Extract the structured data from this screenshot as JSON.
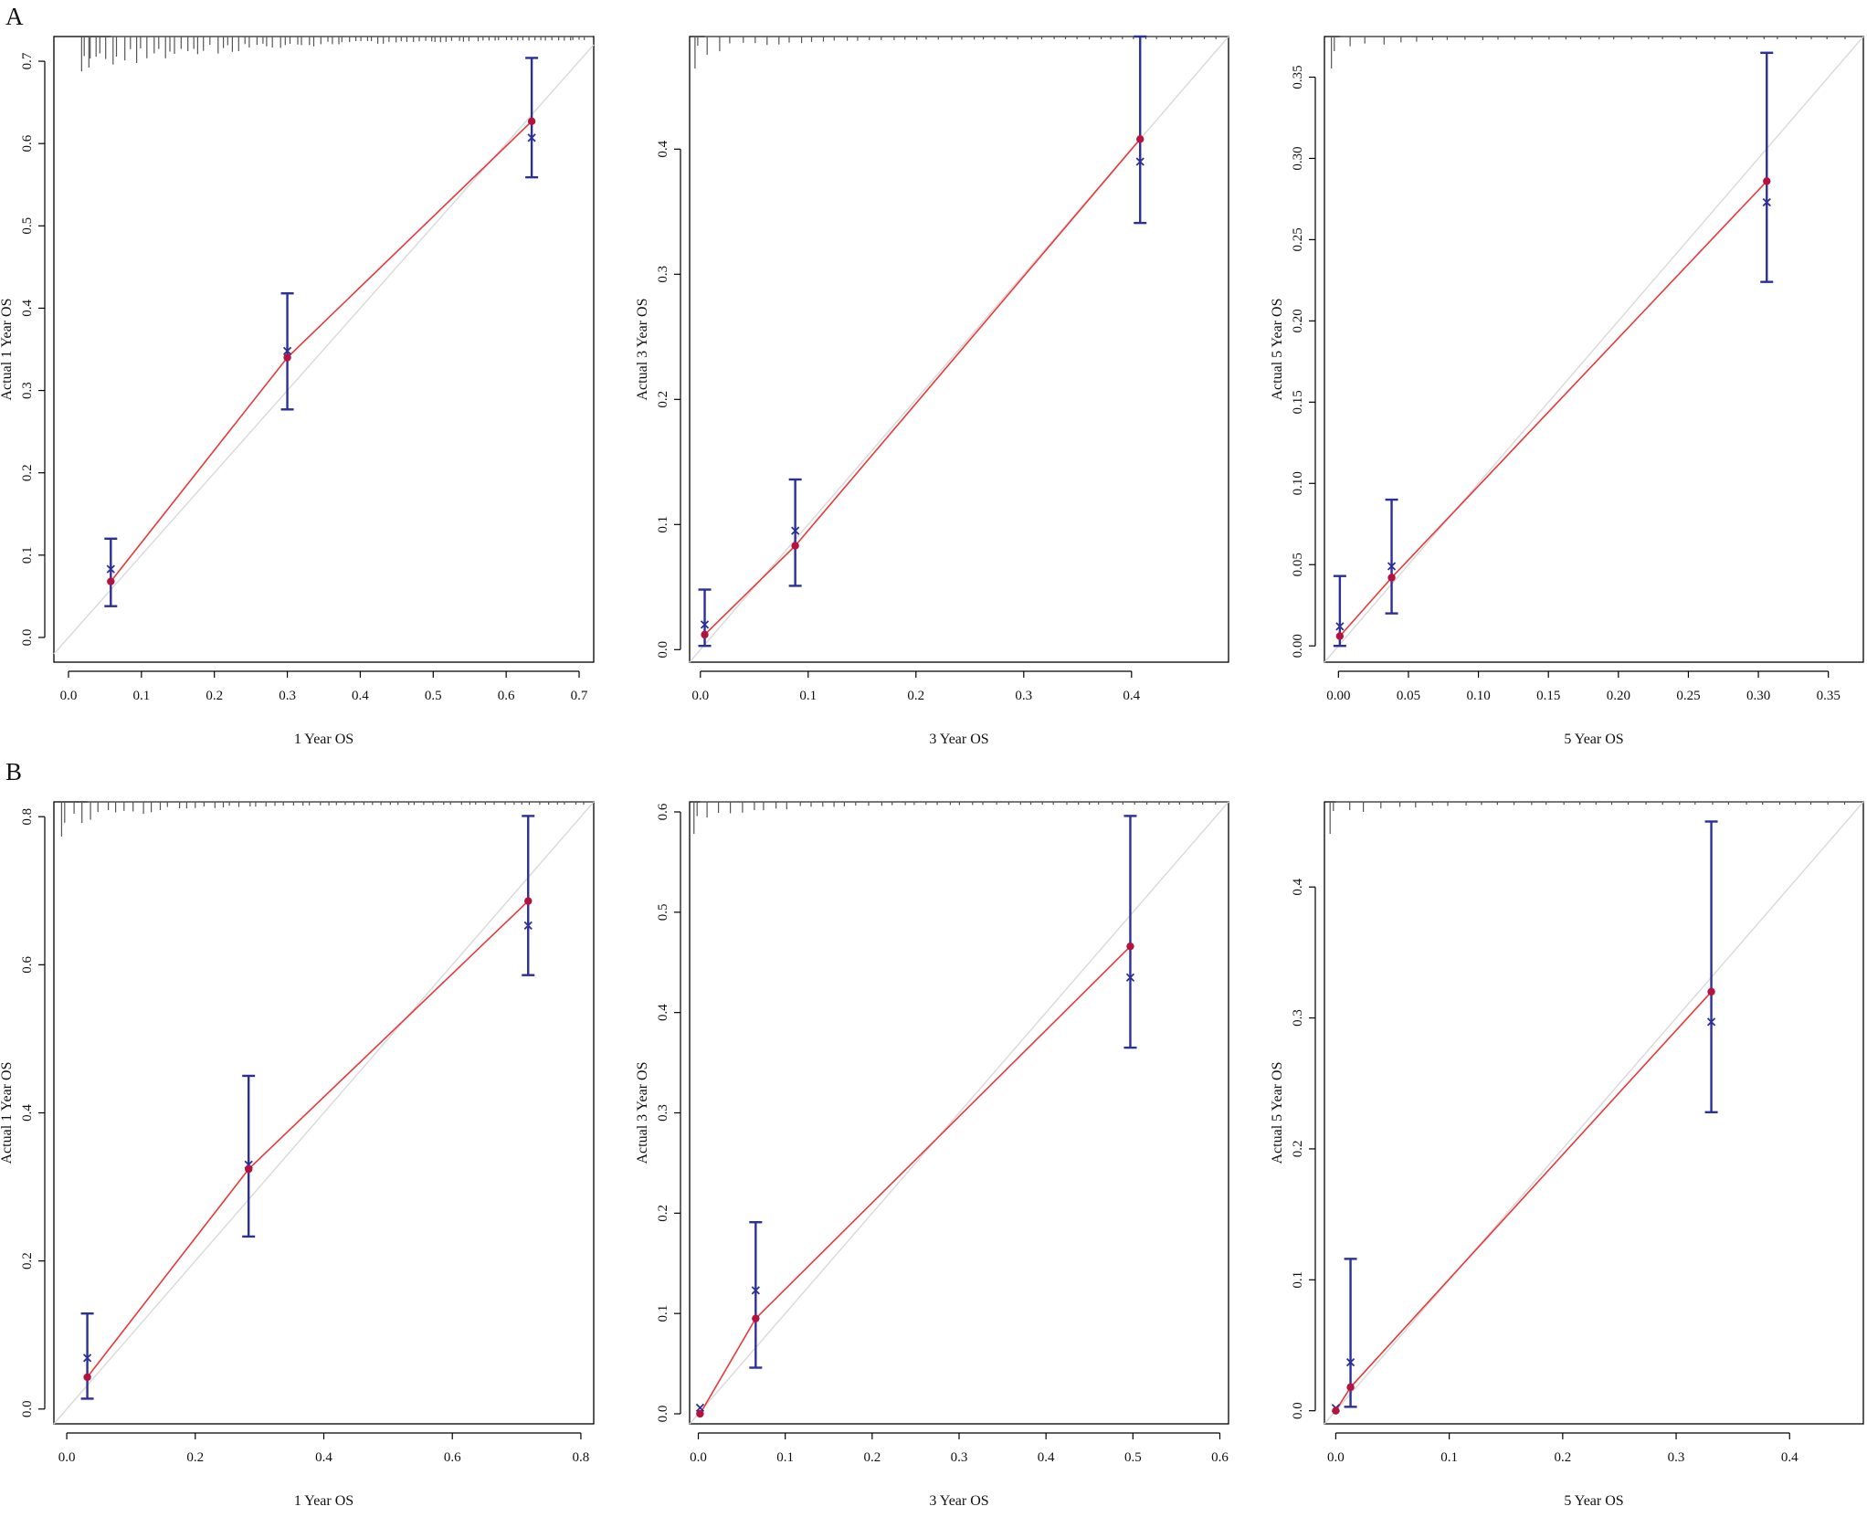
{
  "panel_letters": {
    "A": "A",
    "B": "B"
  },
  "style": {
    "frame_color": "#000000",
    "ideal_line_color": "#d9d9d9",
    "fit_line_color": "#e8393a",
    "errorbar_color": "#2b2f9a",
    "point_color": "#b5123f",
    "rug_color": "#555555"
  },
  "chart_data": [
    {
      "type": "scatter",
      "panel": "A",
      "xlabel": "1 Year OS",
      "ylabel": "Actual 1 Year OS",
      "xlim": [
        -0.02,
        0.72
      ],
      "ylim": [
        -0.03,
        0.73
      ],
      "xticks": [
        0.0,
        0.1,
        0.2,
        0.3,
        0.4,
        0.5,
        0.6,
        0.7
      ],
      "xtick_labels": [
        "0.0",
        "0.1",
        "0.2",
        "0.3",
        "0.4",
        "0.5",
        "0.6",
        "0.7"
      ],
      "yticks": [
        0.0,
        0.1,
        0.2,
        0.3,
        0.4,
        0.5,
        0.6,
        0.7
      ],
      "ytick_labels": [
        "0.0",
        "0.1",
        "0.2",
        "0.3",
        "0.4",
        "0.5",
        "0.6",
        "0.7"
      ],
      "points": [
        {
          "x": 0.058,
          "y": 0.068,
          "kmx": 0.083,
          "lower": 0.038,
          "upper": 0.12
        },
        {
          "x": 0.3,
          "y": 0.34,
          "kmx": 0.348,
          "lower": 0.277,
          "upper": 0.418
        },
        {
          "x": 0.635,
          "y": 0.627,
          "kmx": 0.607,
          "lower": 0.559,
          "upper": 0.704
        }
      ],
      "rug_density": 5
    },
    {
      "type": "scatter",
      "panel": "A",
      "xlabel": "3 Year OS",
      "ylabel": "Actual 3 Year OS",
      "xlim": [
        -0.01,
        0.49
      ],
      "ylim": [
        -0.01,
        0.49
      ],
      "xticks": [
        0.0,
        0.1,
        0.2,
        0.3,
        0.4
      ],
      "xtick_labels": [
        "0.0",
        "0.1",
        "0.2",
        "0.3",
        "0.4"
      ],
      "yticks": [
        0.0,
        0.1,
        0.2,
        0.3,
        0.4
      ],
      "ytick_labels": [
        "0.0",
        "0.1",
        "0.2",
        "0.3",
        "0.4"
      ],
      "points": [
        {
          "x": 0.004,
          "y": 0.012,
          "kmx": 0.02,
          "lower": 0.003,
          "upper": 0.048
        },
        {
          "x": 0.088,
          "y": 0.083,
          "kmx": 0.095,
          "lower": 0.051,
          "upper": 0.136
        },
        {
          "x": 0.408,
          "y": 0.408,
          "kmx": 0.39,
          "lower": 0.341,
          "upper": 0.49
        }
      ],
      "rug_density": 2
    },
    {
      "type": "scatter",
      "panel": "A",
      "xlabel": "5 Year OS",
      "ylabel": "Actual 5 Year OS",
      "xlim": [
        -0.01,
        0.375
      ],
      "ylim": [
        -0.01,
        0.375
      ],
      "xticks": [
        0.0,
        0.05,
        0.1,
        0.15,
        0.2,
        0.25,
        0.3,
        0.35
      ],
      "xtick_labels": [
        "0.00",
        "0.05",
        "0.10",
        "0.15",
        "0.20",
        "0.25",
        "0.30",
        "0.35"
      ],
      "yticks": [
        0.0,
        0.05,
        0.1,
        0.15,
        0.2,
        0.25,
        0.3,
        0.35
      ],
      "ytick_labels": [
        "0.00",
        "0.05",
        "0.10",
        "0.15",
        "0.20",
        "0.25",
        "0.30",
        "0.35"
      ],
      "points": [
        {
          "x": 0.001,
          "y": 0.006,
          "kmx": 0.012,
          "lower": 0.0,
          "upper": 0.043
        },
        {
          "x": 0.038,
          "y": 0.042,
          "kmx": 0.049,
          "lower": 0.02,
          "upper": 0.09
        },
        {
          "x": 0.306,
          "y": 0.286,
          "kmx": 0.273,
          "lower": 0.224,
          "upper": 0.365
        }
      ],
      "rug_density": 1
    },
    {
      "type": "scatter",
      "panel": "B",
      "xlabel": "1 Year OS",
      "ylabel": "Actual 1 Year OS",
      "xlim": [
        -0.02,
        0.82
      ],
      "ylim": [
        -0.02,
        0.82
      ],
      "xticks": [
        0.0,
        0.2,
        0.4,
        0.6,
        0.8
      ],
      "xtick_labels": [
        "0.0",
        "0.2",
        "0.4",
        "0.6",
        "0.8"
      ],
      "yticks": [
        0.0,
        0.2,
        0.4,
        0.6,
        0.8
      ],
      "ytick_labels": [
        "0.0",
        "0.2",
        "0.4",
        "0.6",
        "0.8"
      ],
      "points": [
        {
          "x": 0.032,
          "y": 0.043,
          "kmx": 0.069,
          "lower": 0.014,
          "upper": 0.129
        },
        {
          "x": 0.283,
          "y": 0.324,
          "kmx": 0.33,
          "lower": 0.233,
          "upper": 0.45
        },
        {
          "x": 0.718,
          "y": 0.686,
          "kmx": 0.653,
          "lower": 0.586,
          "upper": 0.801
        }
      ],
      "rug_density": 3
    },
    {
      "type": "scatter",
      "panel": "B",
      "xlabel": "3 Year OS",
      "ylabel": "Actual 3 Year OS",
      "xlim": [
        -0.01,
        0.61
      ],
      "ylim": [
        -0.01,
        0.61
      ],
      "xticks": [
        0.0,
        0.1,
        0.2,
        0.3,
        0.4,
        0.5,
        0.6
      ],
      "xtick_labels": [
        "0.0",
        "0.1",
        "0.2",
        "0.3",
        "0.4",
        "0.5",
        "0.6"
      ],
      "yticks": [
        0.0,
        0.1,
        0.2,
        0.3,
        0.4,
        0.5,
        0.6
      ],
      "ytick_labels": [
        "0.0",
        "0.1",
        "0.2",
        "0.3",
        "0.4",
        "0.5",
        "0.6"
      ],
      "points": [
        {
          "x": 0.002,
          "y": 0.0,
          "kmx": 0.006,
          "lower": null,
          "upper": null
        },
        {
          "x": 0.066,
          "y": 0.095,
          "kmx": 0.123,
          "lower": 0.046,
          "upper": 0.191
        },
        {
          "x": 0.497,
          "y": 0.466,
          "kmx": 0.435,
          "lower": 0.365,
          "upper": 0.596
        }
      ],
      "rug_density": 2
    },
    {
      "type": "scatter",
      "panel": "B",
      "xlabel": "5 Year OS",
      "ylabel": "Actual 5 Year OS",
      "xlim": [
        -0.01,
        0.465
      ],
      "ylim": [
        -0.01,
        0.465
      ],
      "xticks": [
        0.0,
        0.1,
        0.2,
        0.3,
        0.4
      ],
      "xtick_labels": [
        "0.0",
        "0.1",
        "0.2",
        "0.3",
        "0.4"
      ],
      "yticks": [
        0.0,
        0.1,
        0.2,
        0.3,
        0.4
      ],
      "ytick_labels": [
        "0.0",
        "0.1",
        "0.2",
        "0.3",
        "0.4"
      ],
      "points": [
        {
          "x": 0.0,
          "y": 0.0,
          "kmx": 0.002,
          "lower": null,
          "upper": null
        },
        {
          "x": 0.013,
          "y": 0.018,
          "kmx": 0.037,
          "lower": 0.003,
          "upper": 0.116
        },
        {
          "x": 0.331,
          "y": 0.32,
          "kmx": 0.297,
          "lower": 0.228,
          "upper": 0.45
        }
      ],
      "rug_density": 1
    }
  ]
}
